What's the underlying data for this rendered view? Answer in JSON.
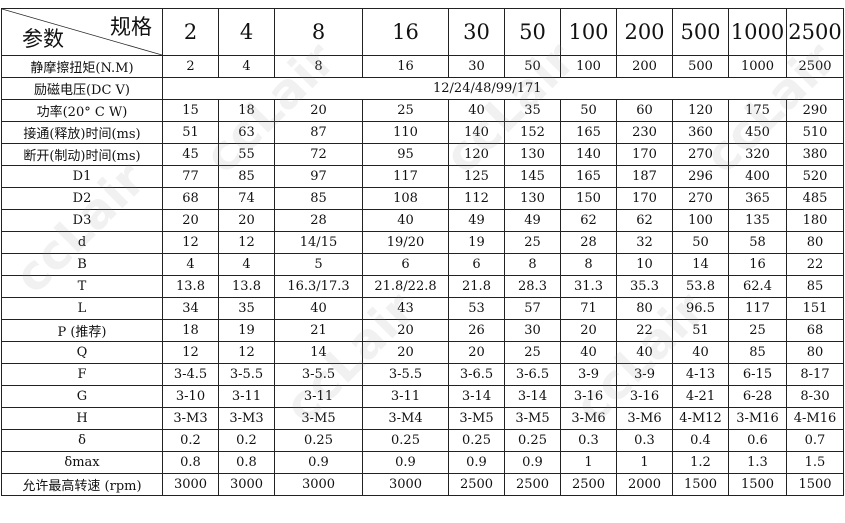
{
  "header": {
    "corner_top": "规格",
    "corner_bottom": "参数",
    "sizes": [
      "2",
      "4",
      "8",
      "16",
      "30",
      "50",
      "100",
      "200",
      "500",
      "1000",
      "2500"
    ]
  },
  "voltage_row": {
    "label": "励磁电压(DC  V)",
    "value": "12/24/48/99/171"
  },
  "rows": [
    {
      "label": "静摩擦扭矩(N.M)",
      "values": [
        "2",
        "4",
        "8",
        "16",
        "30",
        "50",
        "100",
        "200",
        "500",
        "1000",
        "2500"
      ]
    },
    {
      "label": "功率(20° C W)",
      "values": [
        "15",
        "18",
        "20",
        "25",
        "40",
        "35",
        "50",
        "60",
        "120",
        "175",
        "290"
      ]
    },
    {
      "label": "接通(释放)时间(ms)",
      "values": [
        "51",
        "63",
        "87",
        "110",
        "140",
        "152",
        "165",
        "230",
        "360",
        "450",
        "510"
      ]
    },
    {
      "label": "断开(制动)时间(ms)",
      "values": [
        "45",
        "55",
        "72",
        "95",
        "120",
        "130",
        "140",
        "170",
        "270",
        "320",
        "380"
      ]
    },
    {
      "label": "D1",
      "values": [
        "77",
        "85",
        "97",
        "117",
        "125",
        "145",
        "165",
        "187",
        "296",
        "400",
        "520"
      ]
    },
    {
      "label": "D2",
      "values": [
        "68",
        "74",
        "85",
        "108",
        "112",
        "130",
        "150",
        "170",
        "270",
        "365",
        "485"
      ]
    },
    {
      "label": "D3",
      "values": [
        "20",
        "20",
        "28",
        "40",
        "49",
        "49",
        "62",
        "62",
        "100",
        "135",
        "180"
      ]
    },
    {
      "label": "d",
      "values": [
        "12",
        "12",
        "14/15",
        "19/20",
        "19",
        "25",
        "28",
        "32",
        "50",
        "58",
        "80"
      ]
    },
    {
      "label": "B",
      "values": [
        "4",
        "4",
        "5",
        "6",
        "6",
        "8",
        "8",
        "10",
        "14",
        "16",
        "22"
      ]
    },
    {
      "label": "T",
      "values": [
        "13.8",
        "13.8",
        "16.3/17.3",
        "21.8/22.8",
        "21.8",
        "28.3",
        "31.3",
        "35.3",
        "53.8",
        "62.4",
        "85"
      ]
    },
    {
      "label": "L",
      "values": [
        "34",
        "35",
        "40",
        "43",
        "53",
        "57",
        "71",
        "80",
        "96.5",
        "117",
        "151"
      ]
    },
    {
      "label": "P (推荐)",
      "values": [
        "18",
        "19",
        "21",
        "20",
        "26",
        "30",
        "20",
        "22",
        "51",
        "25",
        "68"
      ]
    },
    {
      "label": "Q",
      "values": [
        "12",
        "12",
        "14",
        "20",
        "20",
        "25",
        "40",
        "40",
        "40",
        "85",
        "80"
      ]
    },
    {
      "label": "F",
      "values": [
        "3-4.5",
        "3-5.5",
        "3-5.5",
        "3-5.5",
        "3-6.5",
        "3-6.5",
        "3-9",
        "3-9",
        "4-13",
        "6-15",
        "8-17"
      ]
    },
    {
      "label": "G",
      "values": [
        "3-10",
        "3-11",
        "3-11",
        "3-11",
        "3-14",
        "3-14",
        "3-16",
        "3-16",
        "4-21",
        "6-28",
        "8-30"
      ]
    },
    {
      "label": "H",
      "values": [
        "3-M3",
        "3-M3",
        "3-M5",
        "3-M4",
        "3-M5",
        "3-M5",
        "3-M6",
        "3-M6",
        "4-M12",
        "3-M16",
        "4-M16"
      ]
    },
    {
      "label": "δ",
      "values": [
        "0.2",
        "0.2",
        "0.25",
        "0.25",
        "0.25",
        "0.25",
        "0.3",
        "0.3",
        "0.4",
        "0.6",
        "0.7"
      ]
    },
    {
      "label": "δmax",
      "values": [
        "0.8",
        "0.8",
        "0.9",
        "0.9",
        "0.9",
        "0.9",
        "1",
        "1",
        "1.2",
        "1.3",
        "1.5"
      ]
    },
    {
      "label": "允许最高转速 (rpm)",
      "values": [
        "3000",
        "3000",
        "3000",
        "3000",
        "2500",
        "2500",
        "2500",
        "2000",
        "1500",
        "1500",
        "1500"
      ]
    }
  ],
  "watermark": "ccLair"
}
